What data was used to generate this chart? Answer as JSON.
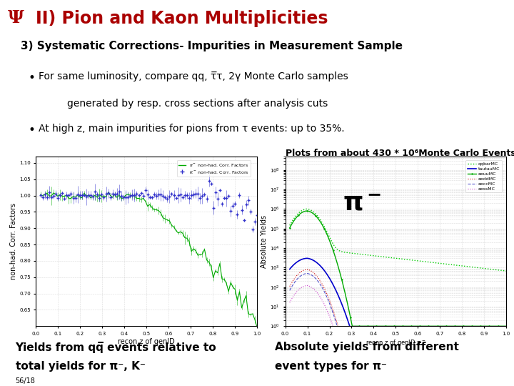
{
  "title": "II) Pion and Kaon Multiplicities",
  "subtitle": "3) Systematic Corrections- Impurities in Measurement Sample",
  "bullet1_line1": "For same luminosity, compare qq, τ̅τ, 2γ Monte Carlo samples",
  "bullet1_line2": "generated by resp. cross sections after analysis cuts",
  "bullet2": "At high z, main impurities for pions from τ events: up to 35%.",
  "note_right": "Plots from about 430 * 10⁶Monte Carlo Events.",
  "caption_left_line1": "Yields from qq̅ events relative to",
  "caption_left_line2": "total yields for π⁻, K⁻",
  "caption_right_line1": "Absolute yields from different",
  "caption_right_line2": "event types for π⁻",
  "page_num": "56/18",
  "bg_color": "#ffffff",
  "title_color": "#aa0000",
  "text_color": "#000000",
  "title_fontsize": 17,
  "subtitle_fontsize": 11,
  "body_fontsize": 10,
  "caption_fontsize": 11,
  "note_fontsize": 9
}
